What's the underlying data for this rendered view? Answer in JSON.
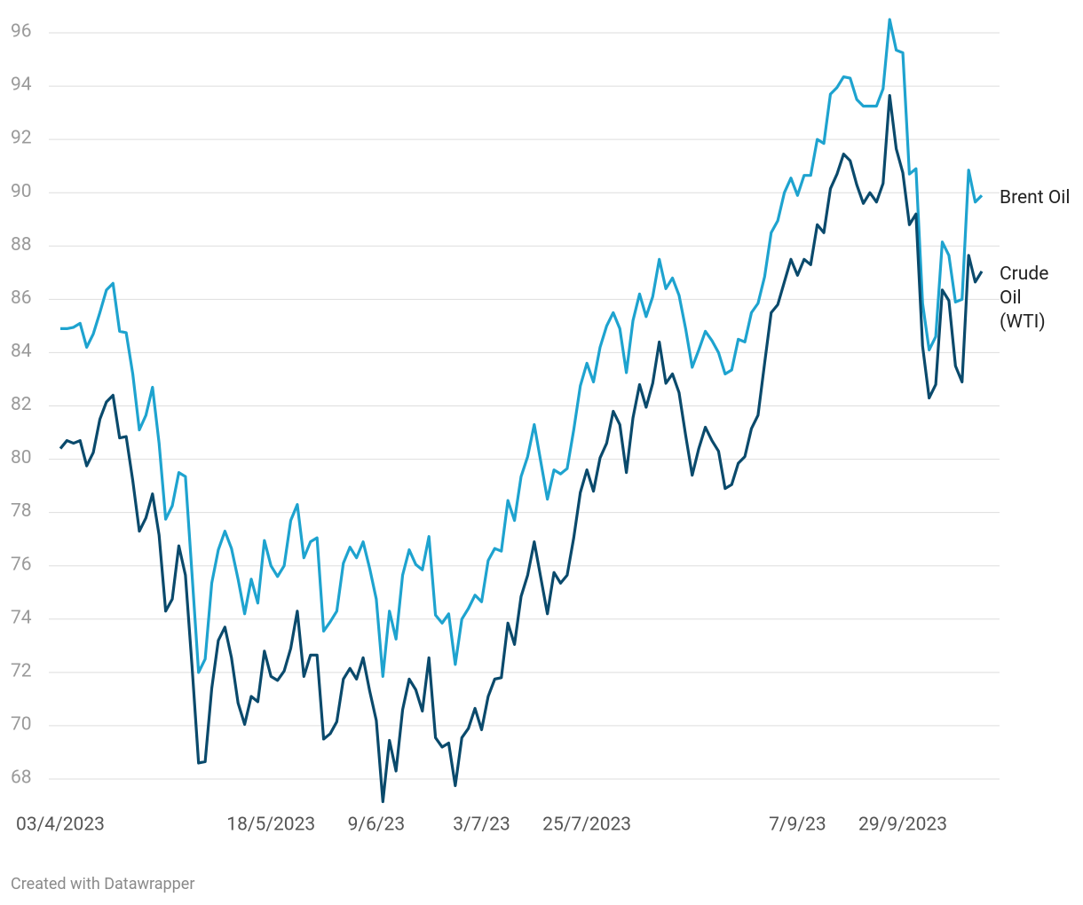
{
  "chart_data": {
    "type": "line",
    "footer": "Created with Datawrapper",
    "categories": [
      "03/4/2023",
      null,
      null,
      null,
      null,
      null,
      null,
      null,
      null,
      null,
      null,
      null,
      null,
      null,
      null,
      null,
      null,
      null,
      null,
      null,
      null,
      null,
      null,
      null,
      null,
      null,
      null,
      null,
      null,
      null,
      null,
      null,
      "18/5/2023",
      null,
      null,
      null,
      null,
      null,
      null,
      null,
      null,
      null,
      null,
      null,
      null,
      null,
      null,
      null,
      "9/6/23",
      null,
      null,
      null,
      null,
      null,
      null,
      null,
      null,
      null,
      null,
      null,
      null,
      null,
      null,
      null,
      "3/7/23",
      null,
      null,
      null,
      null,
      null,
      null,
      null,
      null,
      null,
      null,
      null,
      null,
      null,
      null,
      null,
      "25/7/2023",
      null,
      null,
      null,
      null,
      null,
      null,
      null,
      null,
      null,
      null,
      null,
      null,
      null,
      null,
      null,
      null,
      null,
      null,
      null,
      null,
      null,
      null,
      null,
      null,
      null,
      null,
      null,
      null,
      null,
      null,
      null,
      "7/9/23",
      null,
      null,
      null,
      null,
      null,
      null,
      null,
      null,
      null,
      null,
      null,
      null,
      null,
      null,
      null,
      "29/9/2023",
      null,
      null,
      null,
      null,
      null,
      null,
      null,
      null,
      null,
      null,
      null,
      null
    ],
    "series": [
      {
        "name": "Brent Oil",
        "color": "#1ea3cf",
        "values": [
          84.9,
          84.9,
          84.95,
          85.1,
          84.2,
          84.7,
          85.5,
          86.35,
          86.6,
          84.8,
          84.75,
          83.2,
          81.1,
          81.65,
          82.7,
          80.6,
          77.75,
          78.25,
          79.5,
          79.35,
          75.7,
          72.0,
          72.5,
          75.35,
          76.6,
          77.3,
          76.65,
          75.5,
          74.2,
          75.5,
          74.6,
          76.95,
          76.0,
          75.6,
          76.0,
          77.7,
          78.3,
          76.3,
          76.9,
          77.05,
          73.55,
          73.9,
          74.3,
          76.1,
          76.7,
          76.3,
          76.9,
          75.9,
          74.75,
          71.85,
          74.3,
          73.25,
          75.65,
          76.6,
          76.05,
          75.85,
          77.1,
          74.15,
          73.85,
          74.2,
          72.3,
          74.0,
          74.4,
          74.9,
          74.65,
          76.2,
          76.65,
          76.55,
          78.45,
          77.7,
          79.35,
          80.1,
          81.3,
          79.9,
          78.5,
          79.6,
          79.45,
          79.65,
          81.1,
          82.75,
          83.6,
          82.9,
          84.2,
          85.0,
          85.5,
          84.9,
          83.25,
          85.2,
          86.2,
          85.35,
          86.1,
          87.5,
          86.4,
          86.8,
          86.15,
          84.9,
          83.45,
          84.1,
          84.8,
          84.45,
          84.0,
          83.2,
          83.35,
          84.5,
          84.4,
          85.5,
          85.85,
          86.85,
          88.5,
          88.95,
          90.0,
          90.55,
          89.9,
          90.65,
          90.65,
          92.0,
          91.85,
          93.7,
          93.95,
          94.35,
          94.3,
          93.5,
          93.25,
          93.25,
          93.25,
          93.9,
          96.5,
          95.35,
          95.25,
          90.7,
          90.9,
          85.85,
          84.1,
          84.6,
          88.15,
          87.65,
          85.9,
          86.0,
          90.85,
          89.65,
          89.9
        ]
      },
      {
        "name": "Crude Oil (WTI)",
        "color": "#0a4a6c",
        "values": [
          80.4,
          80.7,
          80.6,
          80.7,
          79.75,
          80.25,
          81.5,
          82.15,
          82.4,
          80.8,
          80.85,
          79.2,
          77.3,
          77.8,
          78.7,
          77.15,
          74.3,
          74.75,
          76.75,
          75.65,
          72.25,
          68.6,
          68.65,
          71.4,
          73.2,
          73.7,
          72.55,
          70.85,
          70.05,
          71.1,
          70.9,
          72.8,
          71.85,
          71.7,
          72.05,
          72.9,
          74.3,
          71.85,
          72.65,
          72.65,
          69.5,
          69.7,
          70.15,
          71.75,
          72.15,
          71.75,
          72.55,
          71.3,
          70.2,
          67.15,
          69.45,
          68.3,
          70.6,
          71.75,
          71.35,
          70.55,
          72.55,
          69.55,
          69.2,
          69.35,
          67.75,
          69.55,
          69.9,
          70.65,
          69.85,
          71.1,
          71.75,
          71.8,
          73.85,
          73.05,
          74.85,
          75.65,
          76.9,
          75.55,
          74.2,
          75.75,
          75.35,
          75.65,
          77.05,
          78.75,
          79.6,
          78.8,
          80.05,
          80.6,
          81.8,
          81.3,
          79.5,
          81.55,
          82.8,
          81.95,
          82.85,
          84.4,
          82.85,
          83.2,
          82.5,
          80.9,
          79.4,
          80.4,
          81.2,
          80.7,
          80.3,
          78.9,
          79.05,
          79.85,
          80.1,
          81.15,
          81.65,
          83.6,
          85.5,
          85.8,
          86.65,
          87.5,
          86.9,
          87.5,
          87.3,
          88.8,
          88.5,
          90.15,
          90.7,
          91.45,
          91.2,
          90.3,
          89.6,
          90.0,
          89.65,
          90.35,
          93.65,
          91.65,
          90.75,
          88.8,
          89.2,
          84.25,
          82.3,
          82.8,
          86.35,
          85.95,
          83.5,
          82.9,
          87.65,
          86.65,
          87.05
        ]
      }
    ],
    "ylim": [
      68,
      96
    ],
    "yticks": [
      68,
      70,
      72,
      74,
      76,
      78,
      80,
      82,
      84,
      86,
      88,
      90,
      92,
      94,
      96
    ],
    "grid": true
  }
}
